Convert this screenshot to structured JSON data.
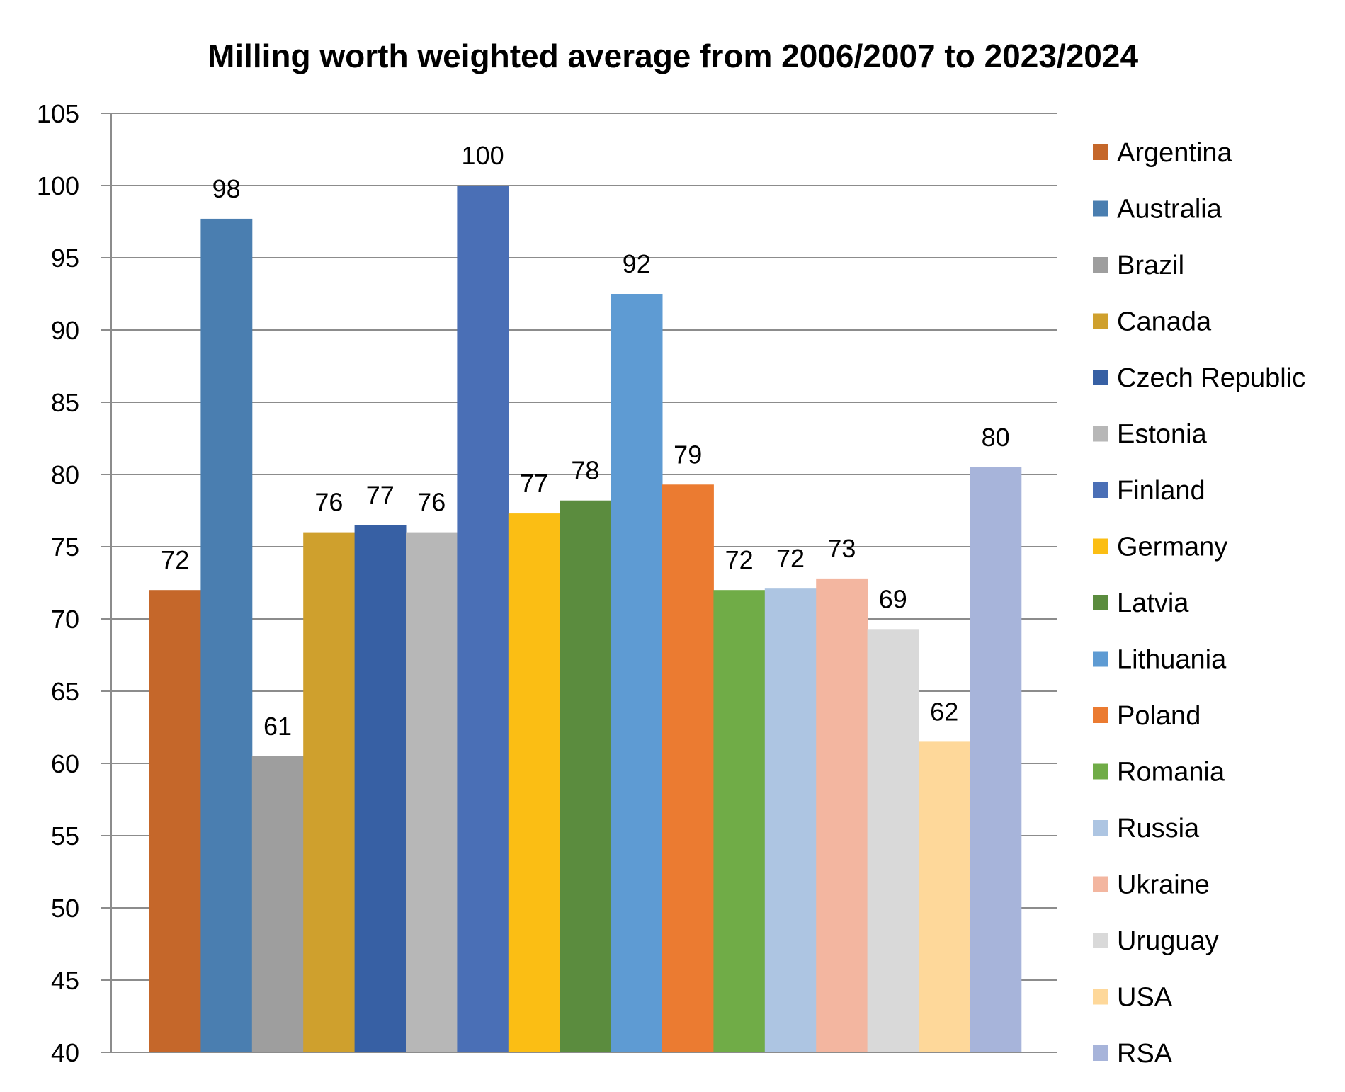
{
  "chart_data": {
    "type": "bar",
    "title": "Milling worth weighted average from 2006/2007 to 2023/2024",
    "xlabel": "",
    "ylabel": "",
    "ylim": [
      40,
      105
    ],
    "ytick_step": 5,
    "yticks": [
      "40",
      "45",
      "50",
      "55",
      "60",
      "65",
      "70",
      "75",
      "80",
      "85",
      "90",
      "95",
      "100",
      "105"
    ],
    "grid": true,
    "legend_position": "right",
    "categories": [
      "Argentina",
      "Australia",
      "Brazil",
      "Canada",
      "Czech Republic",
      "Estonia",
      "Finland",
      "Germany",
      "Latvia",
      "Lithuania",
      "Poland",
      "Romania",
      "Russia",
      "Ukraine",
      "Uruguay",
      "USA",
      "RSA"
    ],
    "values": [
      72.0,
      97.7,
      60.5,
      76.0,
      76.5,
      76.0,
      100.0,
      77.3,
      78.2,
      92.5,
      79.3,
      72.0,
      72.1,
      72.8,
      69.3,
      61.5,
      80.5
    ],
    "data_labels": [
      "72",
      "98",
      "61",
      "76",
      "77",
      "76",
      "100",
      "77",
      "78",
      "92",
      "79",
      "72",
      "72",
      "73",
      "69",
      "62",
      "80"
    ],
    "colors": [
      "#C5672A",
      "#4A7EB0",
      "#9E9E9E",
      "#CFA02D",
      "#3760A4",
      "#B7B7B7",
      "#4A6FB6",
      "#FBBE14",
      "#5B8C3E",
      "#5E9BD3",
      "#EB7B31",
      "#70AC47",
      "#ADC5E2",
      "#F3B6A0",
      "#D9D9D9",
      "#FED89A",
      "#A7B4DA"
    ]
  }
}
